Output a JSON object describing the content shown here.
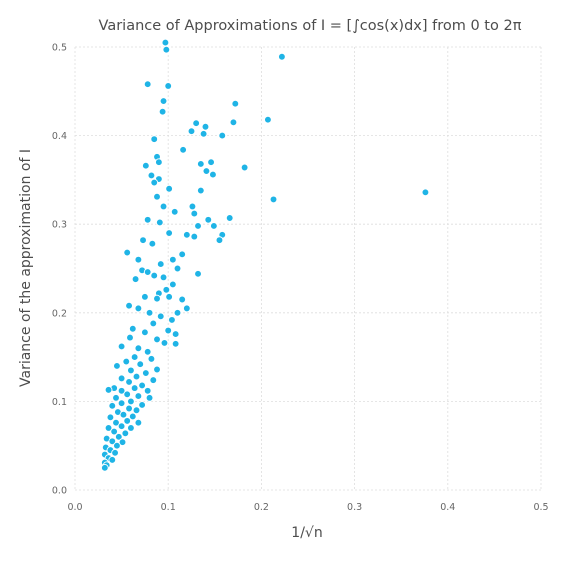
{
  "chart_data": {
    "type": "scatter",
    "title": "Variance of Approximations of I = [∫cos(x)dx] from 0 to 2π",
    "xlabel": "1/√n",
    "ylabel": "Variance of the approximation of I",
    "xlim": [
      0,
      0.5
    ],
    "ylim": [
      0,
      0.5
    ],
    "xticks": [
      "0.0",
      "0.1",
      "0.2",
      "0.3",
      "0.4",
      "0.5"
    ],
    "yticks": [
      "0.0",
      "0.1",
      "0.2",
      "0.3",
      "0.4",
      "0.5"
    ],
    "grid": true,
    "legend": "none",
    "marker_color": "#1fb4e6",
    "series": [
      {
        "points": [
          [
            0.097,
            0.505
          ],
          [
            0.098,
            0.497
          ],
          [
            0.222,
            0.489
          ],
          [
            0.078,
            0.458
          ],
          [
            0.1,
            0.456
          ],
          [
            0.095,
            0.439
          ],
          [
            0.172,
            0.436
          ],
          [
            0.094,
            0.427
          ],
          [
            0.207,
            0.418
          ],
          [
            0.13,
            0.414
          ],
          [
            0.17,
            0.415
          ],
          [
            0.14,
            0.41
          ],
          [
            0.125,
            0.405
          ],
          [
            0.138,
            0.402
          ],
          [
            0.158,
            0.4
          ],
          [
            0.085,
            0.396
          ],
          [
            0.116,
            0.384
          ],
          [
            0.088,
            0.376
          ],
          [
            0.09,
            0.37
          ],
          [
            0.146,
            0.37
          ],
          [
            0.135,
            0.368
          ],
          [
            0.076,
            0.366
          ],
          [
            0.141,
            0.36
          ],
          [
            0.148,
            0.356
          ],
          [
            0.082,
            0.355
          ],
          [
            0.182,
            0.364
          ],
          [
            0.376,
            0.336
          ],
          [
            0.09,
            0.351
          ],
          [
            0.085,
            0.347
          ],
          [
            0.101,
            0.34
          ],
          [
            0.135,
            0.338
          ],
          [
            0.213,
            0.328
          ],
          [
            0.088,
            0.331
          ],
          [
            0.095,
            0.32
          ],
          [
            0.126,
            0.32
          ],
          [
            0.107,
            0.314
          ],
          [
            0.128,
            0.312
          ],
          [
            0.078,
            0.305
          ],
          [
            0.166,
            0.307
          ],
          [
            0.143,
            0.305
          ],
          [
            0.091,
            0.302
          ],
          [
            0.132,
            0.298
          ],
          [
            0.149,
            0.298
          ],
          [
            0.101,
            0.29
          ],
          [
            0.12,
            0.288
          ],
          [
            0.128,
            0.286
          ],
          [
            0.158,
            0.288
          ],
          [
            0.155,
            0.282
          ],
          [
            0.073,
            0.282
          ],
          [
            0.083,
            0.278
          ],
          [
            0.056,
            0.268
          ],
          [
            0.068,
            0.26
          ],
          [
            0.115,
            0.266
          ],
          [
            0.105,
            0.26
          ],
          [
            0.092,
            0.255
          ],
          [
            0.11,
            0.25
          ],
          [
            0.132,
            0.244
          ],
          [
            0.072,
            0.248
          ],
          [
            0.078,
            0.246
          ],
          [
            0.085,
            0.242
          ],
          [
            0.095,
            0.24
          ],
          [
            0.065,
            0.238
          ],
          [
            0.105,
            0.232
          ],
          [
            0.098,
            0.226
          ],
          [
            0.09,
            0.222
          ],
          [
            0.088,
            0.216
          ],
          [
            0.075,
            0.218
          ],
          [
            0.101,
            0.218
          ],
          [
            0.115,
            0.215
          ],
          [
            0.12,
            0.205
          ],
          [
            0.11,
            0.2
          ],
          [
            0.058,
            0.208
          ],
          [
            0.068,
            0.205
          ],
          [
            0.08,
            0.2
          ],
          [
            0.092,
            0.196
          ],
          [
            0.104,
            0.192
          ],
          [
            0.084,
            0.188
          ],
          [
            0.1,
            0.18
          ],
          [
            0.108,
            0.176
          ],
          [
            0.062,
            0.182
          ],
          [
            0.075,
            0.178
          ],
          [
            0.059,
            0.172
          ],
          [
            0.088,
            0.17
          ],
          [
            0.096,
            0.166
          ],
          [
            0.108,
            0.165
          ],
          [
            0.05,
            0.162
          ],
          [
            0.068,
            0.16
          ],
          [
            0.078,
            0.156
          ],
          [
            0.064,
            0.15
          ],
          [
            0.082,
            0.148
          ],
          [
            0.055,
            0.145
          ],
          [
            0.07,
            0.142
          ],
          [
            0.045,
            0.14
          ],
          [
            0.088,
            0.136
          ],
          [
            0.06,
            0.135
          ],
          [
            0.076,
            0.132
          ],
          [
            0.066,
            0.128
          ],
          [
            0.05,
            0.126
          ],
          [
            0.084,
            0.124
          ],
          [
            0.058,
            0.122
          ],
          [
            0.072,
            0.118
          ],
          [
            0.042,
            0.115
          ],
          [
            0.064,
            0.115
          ],
          [
            0.036,
            0.113
          ],
          [
            0.05,
            0.112
          ],
          [
            0.078,
            0.112
          ],
          [
            0.056,
            0.108
          ],
          [
            0.068,
            0.106
          ],
          [
            0.044,
            0.104
          ],
          [
            0.08,
            0.104
          ],
          [
            0.06,
            0.1
          ],
          [
            0.05,
            0.098
          ],
          [
            0.072,
            0.096
          ],
          [
            0.04,
            0.095
          ],
          [
            0.058,
            0.092
          ],
          [
            0.066,
            0.09
          ],
          [
            0.046,
            0.088
          ],
          [
            0.052,
            0.085
          ],
          [
            0.062,
            0.083
          ],
          [
            0.038,
            0.082
          ],
          [
            0.056,
            0.078
          ],
          [
            0.044,
            0.076
          ],
          [
            0.068,
            0.076
          ],
          [
            0.05,
            0.072
          ],
          [
            0.06,
            0.07
          ],
          [
            0.036,
            0.07
          ],
          [
            0.042,
            0.066
          ],
          [
            0.054,
            0.064
          ],
          [
            0.047,
            0.06
          ],
          [
            0.034,
            0.058
          ],
          [
            0.04,
            0.055
          ],
          [
            0.051,
            0.054
          ],
          [
            0.045,
            0.05
          ],
          [
            0.033,
            0.048
          ],
          [
            0.038,
            0.045
          ],
          [
            0.043,
            0.042
          ],
          [
            0.032,
            0.04
          ],
          [
            0.036,
            0.036
          ],
          [
            0.04,
            0.034
          ],
          [
            0.032,
            0.031
          ],
          [
            0.034,
            0.028
          ],
          [
            0.032,
            0.025
          ]
        ]
      }
    ]
  }
}
